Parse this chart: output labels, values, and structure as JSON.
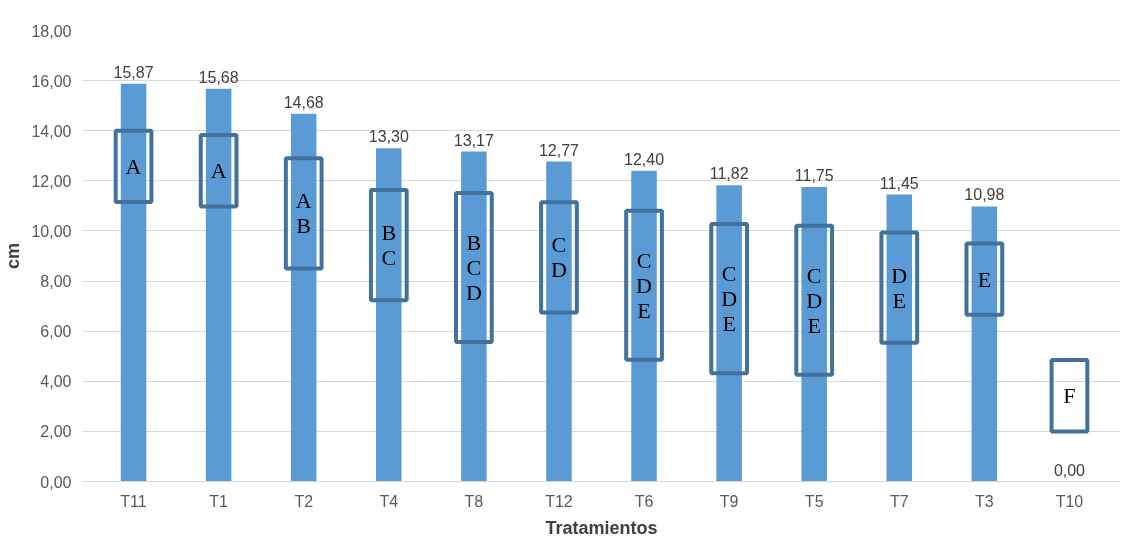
{
  "chart_data": {
    "type": "bar",
    "xlabel": "Tratamientos",
    "ylabel": "cm",
    "categories": [
      "T11",
      "T1",
      "T2",
      "T4",
      "T8",
      "T12",
      "T6",
      "T9",
      "T5",
      "T7",
      "T3",
      "T10"
    ],
    "values": [
      15.87,
      15.68,
      14.68,
      13.3,
      13.17,
      12.77,
      12.4,
      11.82,
      11.75,
      11.45,
      10.98,
      0
    ],
    "value_labels": [
      "15,87",
      "15,68",
      "14,68",
      "13,30",
      "13,17",
      "12,77",
      "12,40",
      "11,82",
      "11,75",
      "11,45",
      "10,98",
      "0,00"
    ],
    "color": "#5b9bd5",
    "ylim": [
      0,
      18
    ],
    "yticks": [
      {
        "value": 0,
        "label": "0,00"
      },
      {
        "value": 2,
        "label": "2,00"
      },
      {
        "value": 4,
        "label": "4,00"
      },
      {
        "value": 6,
        "label": "6,00"
      },
      {
        "value": 8,
        "label": "8,00"
      },
      {
        "value": 10,
        "label": "10,00"
      },
      {
        "value": 12,
        "label": "12,00"
      },
      {
        "value": 14,
        "label": "14,00"
      },
      {
        "value": 16,
        "label": "16,00"
      },
      {
        "value": 18,
        "label": "18,00"
      }
    ],
    "grid": "y",
    "annotations": [
      "A",
      "A",
      "A\nB",
      "B\nC",
      "B\nC\nD",
      "C\nD",
      "C\nD\nE",
      "C\nD\nE",
      "C\nD\nE",
      "D\nE",
      "E",
      "F"
    ]
  }
}
